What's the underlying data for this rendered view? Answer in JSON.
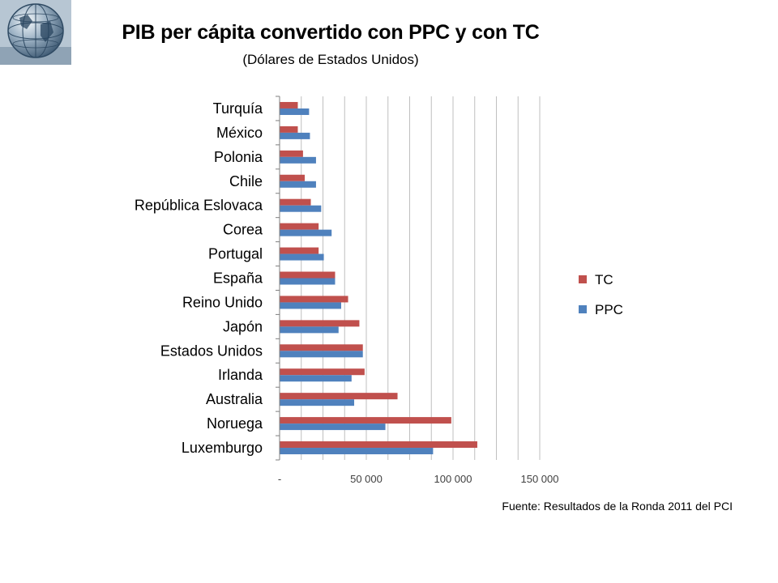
{
  "slide": {
    "source": "Fuente: Resultados de la Ronda 2011 del PCI"
  },
  "chart_data": {
    "type": "bar",
    "orientation": "horizontal",
    "title": "PIB per cápita convertido con PPC y con TC",
    "subtitle": "(Dólares de Estados Unidos)",
    "xlabel": "",
    "ylabel": "",
    "xlim": [
      0,
      150000
    ],
    "x_ticks": [
      {
        "value": 0,
        "label": "-"
      },
      {
        "value": 50000,
        "label": "50 000"
      },
      {
        "value": 100000,
        "label": "100 000"
      },
      {
        "value": 150000,
        "label": "150 000"
      }
    ],
    "minor_gridline_step": 12500,
    "grid": true,
    "legend_position": "right",
    "categories": [
      "Luxemburgo",
      "Noruega",
      "Australia",
      "Irlanda",
      "Estados Unidos",
      "Japón",
      "Reino Unido",
      "España",
      "Portugal",
      "Corea",
      "República Eslovaca",
      "Chile",
      "Polonia",
      "México",
      "Turquía"
    ],
    "series": [
      {
        "name": "TC",
        "color": "#C0504D",
        "values": [
          114000,
          99000,
          68000,
          49000,
          48000,
          46000,
          39500,
          32000,
          22500,
          22500,
          18000,
          14500,
          13500,
          10500,
          10500
        ]
      },
      {
        "name": "PPC",
        "color": "#4F81BD",
        "values": [
          88500,
          61000,
          43000,
          41500,
          48000,
          34000,
          35500,
          32000,
          25500,
          30000,
          24000,
          21000,
          21000,
          17500,
          17000
        ]
      }
    ]
  }
}
